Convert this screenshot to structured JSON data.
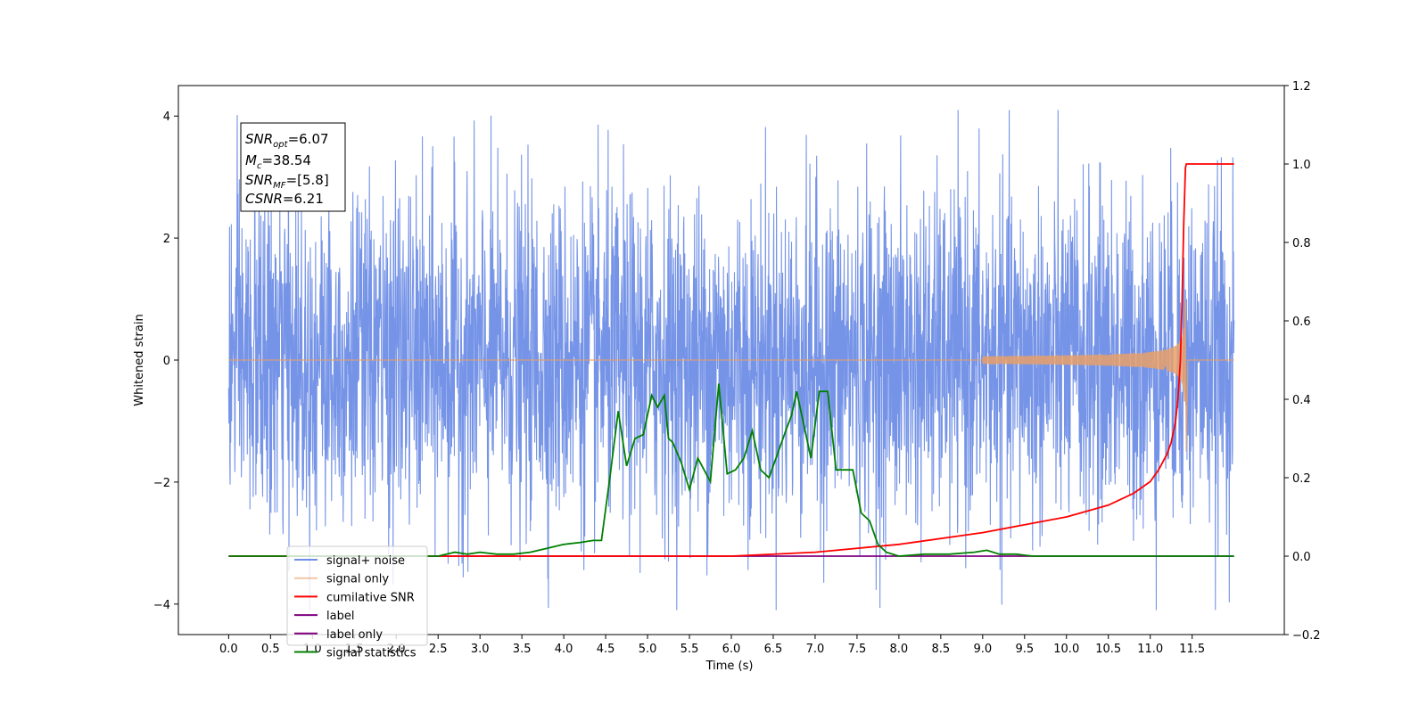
{
  "chart_data": {
    "type": "line",
    "xlabel": "Time (s)",
    "ylabel": "Whitened strain",
    "xlim": [
      -0.6,
      12.6
    ],
    "ylim": [
      -4.5,
      4.5
    ],
    "y2lim": [
      -0.2,
      1.2
    ],
    "x_ticks": [
      0.0,
      0.5,
      1.0,
      1.5,
      2.0,
      2.5,
      3.0,
      3.5,
      4.0,
      4.5,
      5.0,
      5.5,
      6.0,
      6.5,
      7.0,
      7.5,
      8.0,
      8.5,
      9.0,
      9.5,
      10.0,
      10.5,
      11.0,
      11.5
    ],
    "x_tick_labels": [
      "0.0",
      "0.5",
      "1.0",
      "1.5",
      "2.0",
      "2.5",
      "3.0",
      "3.5",
      "4.0",
      "4.5",
      "5.0",
      "5.5",
      "6.0",
      "6.5",
      "7.0",
      "7.5",
      "8.0",
      "8.5",
      "9.0",
      "9.5",
      "10.0",
      "10.5",
      "11.0",
      "11.5"
    ],
    "y_ticks": [
      -4,
      -2,
      0,
      2,
      4
    ],
    "y_tick_labels": [
      "−4",
      "−2",
      "0",
      "2",
      "4"
    ],
    "y2_ticks": [
      -0.2,
      0.0,
      0.2,
      0.4,
      0.6,
      0.8,
      1.0,
      1.2
    ],
    "y2_tick_labels": [
      "−0.2",
      "0.0",
      "0.2",
      "0.4",
      "0.6",
      "0.8",
      "1.0",
      "1.2"
    ],
    "annotation": {
      "lines": [
        {
          "sym": "SNR",
          "sub": "opt",
          "value": "=6.07"
        },
        {
          "sym": "M",
          "sub": "c",
          "value": "=38.54"
        },
        {
          "sym": "SNR",
          "sub": "MF",
          "value": "=[5.8]"
        },
        {
          "sym": "CSNR",
          "sub": "",
          "value": "=6.21"
        }
      ]
    },
    "legend_placement": "lower-left",
    "series": [
      {
        "name": "signal+ noise",
        "axis": "left",
        "color": "#6f8ee6",
        "description": "noise, roughly between -3 and 3.5",
        "x_range": [
          0.0,
          12.0
        ],
        "amplitude": 1.35
      },
      {
        "name": "signal only",
        "axis": "left",
        "color": "#e8a06a",
        "chirp_end": 11.42,
        "peak_amplitude": 1.2,
        "min_value": -1.5
      },
      {
        "name": "cumilative SNR",
        "axis": "right",
        "color": "#ff0000",
        "x": [
          0.0,
          6.0,
          7.0,
          8.0,
          9.0,
          10.0,
          10.5,
          10.8,
          11.0,
          11.1,
          11.2,
          11.25,
          11.3,
          11.33,
          11.36,
          11.38,
          11.4,
          11.42,
          11.43,
          12.0
        ],
        "y": [
          0.0,
          0.0,
          0.01,
          0.03,
          0.06,
          0.1,
          0.13,
          0.16,
          0.19,
          0.22,
          0.26,
          0.29,
          0.34,
          0.4,
          0.5,
          0.65,
          0.85,
          0.99,
          1.0,
          1.0
        ]
      },
      {
        "name": "label",
        "axis": "right",
        "color": "#800080",
        "x": [
          0.0,
          12.0
        ],
        "y": [
          0.0,
          0.0
        ]
      },
      {
        "name": "label only",
        "axis": "right",
        "color": "#800080",
        "hidden": true,
        "x": [
          0.0,
          12.0
        ],
        "y": [
          0.0,
          0.0
        ]
      },
      {
        "name": "signal statistics",
        "axis": "right",
        "color": "#008000",
        "x": [
          0.0,
          2.5,
          2.7,
          2.85,
          3.0,
          3.2,
          3.4,
          3.6,
          3.8,
          4.0,
          4.2,
          4.35,
          4.45,
          4.55,
          4.65,
          4.75,
          4.85,
          4.95,
          5.05,
          5.12,
          5.2,
          5.25,
          5.3,
          5.4,
          5.5,
          5.6,
          5.65,
          5.75,
          5.85,
          5.95,
          6.05,
          6.15,
          6.25,
          6.35,
          6.45,
          6.55,
          6.65,
          6.72,
          6.78,
          6.85,
          6.95,
          7.05,
          7.15,
          7.25,
          7.35,
          7.45,
          7.55,
          7.65,
          7.75,
          7.85,
          8.0,
          8.3,
          8.6,
          8.9,
          9.05,
          9.2,
          9.4,
          9.6,
          12.0
        ],
        "y": [
          0.0,
          0.0,
          0.01,
          0.005,
          0.01,
          0.005,
          0.005,
          0.01,
          0.02,
          0.03,
          0.035,
          0.04,
          0.04,
          0.2,
          0.37,
          0.23,
          0.3,
          0.31,
          0.41,
          0.38,
          0.41,
          0.3,
          0.29,
          0.24,
          0.17,
          0.25,
          0.23,
          0.19,
          0.44,
          0.21,
          0.22,
          0.25,
          0.32,
          0.22,
          0.2,
          0.26,
          0.32,
          0.36,
          0.42,
          0.35,
          0.25,
          0.42,
          0.42,
          0.22,
          0.22,
          0.22,
          0.11,
          0.09,
          0.03,
          0.01,
          0.0,
          0.005,
          0.005,
          0.01,
          0.015,
          0.005,
          0.005,
          0.0,
          0.0
        ]
      }
    ]
  }
}
